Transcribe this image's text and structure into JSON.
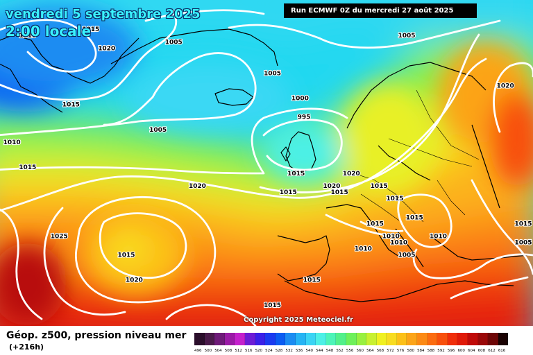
{
  "map": {
    "title_date": "vendredi 5 septembre 2025",
    "title_time": "2:00 locale",
    "run_info": "Run ECMWF 0Z du mercredi 27 août 2025",
    "copyright": "Copyright 2025 Meteociel.fr",
    "background_color": "#22d8f0",
    "isobar_color": "#ffffff",
    "coastline_color": "#000000",
    "pressure_labels": [
      "1015",
      "1010",
      "1020",
      "1015",
      "1010",
      "1005",
      "1005",
      "1000",
      "995",
      "1005",
      "1020",
      "1015",
      "1005",
      "1020",
      "1015",
      "1020",
      "1015",
      "1015",
      "1020",
      "1025",
      "1015",
      "1020",
      "1015",
      "1015",
      "1015",
      "1015",
      "1010",
      "1005",
      "1005",
      "1010",
      "1015",
      "1010",
      "1010",
      "1015",
      "1015"
    ],
    "labels": [
      {
        "text": "1015",
        "lon": -52,
        "lat": 67
      },
      {
        "text": "1010",
        "lon": -68,
        "lat": 66
      },
      {
        "text": "1020",
        "lon": -48,
        "lat": 64
      },
      {
        "text": "1015",
        "lon": -57,
        "lat": 55
      },
      {
        "text": "1010",
        "lon": -72,
        "lat": 49
      },
      {
        "text": "1005",
        "lon": -31,
        "lat": 65
      },
      {
        "text": "1005",
        "lon": -6,
        "lat": 60
      },
      {
        "text": "1000",
        "lon": 1,
        "lat": 56
      },
      {
        "text": "995",
        "lon": 2,
        "lat": 53
      },
      {
        "text": "1005",
        "lon": -35,
        "lat": 51
      },
      {
        "text": "1020",
        "lon": -25,
        "lat": 42
      },
      {
        "text": "1015",
        "lon": -68,
        "lat": 45
      },
      {
        "text": "1005",
        "lon": 28,
        "lat": 66
      },
      {
        "text": "1020",
        "lon": 53,
        "lat": 58
      },
      {
        "text": "1015",
        "lon": 0,
        "lat": 44
      },
      {
        "text": "1020",
        "lon": 9,
        "lat": 42
      },
      {
        "text": "1015",
        "lon": 11,
        "lat": 41
      },
      {
        "text": "1015",
        "lon": 21,
        "lat": 42
      },
      {
        "text": "1020",
        "lon": 14,
        "lat": 44
      },
      {
        "text": "1025",
        "lon": -60,
        "lat": 34
      },
      {
        "text": "1015",
        "lon": -43,
        "lat": 31
      },
      {
        "text": "1020",
        "lon": -41,
        "lat": 27
      },
      {
        "text": "1015",
        "lon": -6,
        "lat": 23
      },
      {
        "text": "1015",
        "lon": 25,
        "lat": 40
      },
      {
        "text": "1015",
        "lon": 30,
        "lat": 37
      },
      {
        "text": "1015",
        "lon": 20,
        "lat": 36
      },
      {
        "text": "1010",
        "lon": 26,
        "lat": 33
      },
      {
        "text": "1005",
        "lon": 28,
        "lat": 31
      },
      {
        "text": "1005",
        "lon": 58,
        "lat": 33
      },
      {
        "text": "1010",
        "lon": 36,
        "lat": 34
      },
      {
        "text": "1015",
        "lon": 58,
        "lat": 36
      },
      {
        "text": "1010",
        "lon": 17,
        "lat": 32
      },
      {
        "text": "1010",
        "lon": 24,
        "lat": 34
      },
      {
        "text": "1015",
        "lon": 4,
        "lat": 27
      },
      {
        "text": "1015",
        "lon": -2,
        "lat": 41
      }
    ]
  },
  "legend": {
    "title": "Géop. z500, pression niveau mer",
    "lead_time": "(+216h)",
    "scale": [
      {
        "label": "496",
        "color": "#2b0e2b"
      },
      {
        "label": "500",
        "color": "#4a1a4a"
      },
      {
        "label": "504",
        "color": "#6e1a78"
      },
      {
        "label": "508",
        "color": "#9a1aa6"
      },
      {
        "label": "512",
        "color": "#c420cc"
      },
      {
        "label": "516",
        "color": "#6c1cd6"
      },
      {
        "label": "520",
        "color": "#3a20e8"
      },
      {
        "label": "524",
        "color": "#1a3af0"
      },
      {
        "label": "528",
        "color": "#0a5cf2"
      },
      {
        "label": "532",
        "color": "#1a8cf2"
      },
      {
        "label": "536",
        "color": "#25b4f4"
      },
      {
        "label": "540",
        "color": "#3ad4f4"
      },
      {
        "label": "544",
        "color": "#4cf0e6"
      },
      {
        "label": "548",
        "color": "#4cf4b8"
      },
      {
        "label": "552",
        "color": "#52f08a"
      },
      {
        "label": "556",
        "color": "#6ef05a"
      },
      {
        "label": "560",
        "color": "#98f040"
      },
      {
        "label": "564",
        "color": "#c8f030"
      },
      {
        "label": "568",
        "color": "#f0f020"
      },
      {
        "label": "572",
        "color": "#f8dc20"
      },
      {
        "label": "576",
        "color": "#fcc018"
      },
      {
        "label": "580",
        "color": "#fca418"
      },
      {
        "label": "584",
        "color": "#fc8a14"
      },
      {
        "label": "588",
        "color": "#fc6c10"
      },
      {
        "label": "592",
        "color": "#f8500c"
      },
      {
        "label": "596",
        "color": "#f02e0a"
      },
      {
        "label": "600",
        "color": "#e01a08"
      },
      {
        "label": "604",
        "color": "#c00a08"
      },
      {
        "label": "608",
        "color": "#9a0808"
      },
      {
        "label": "612",
        "color": "#6e0606"
      },
      {
        "label": "616",
        "color": "#1a0202"
      }
    ]
  }
}
